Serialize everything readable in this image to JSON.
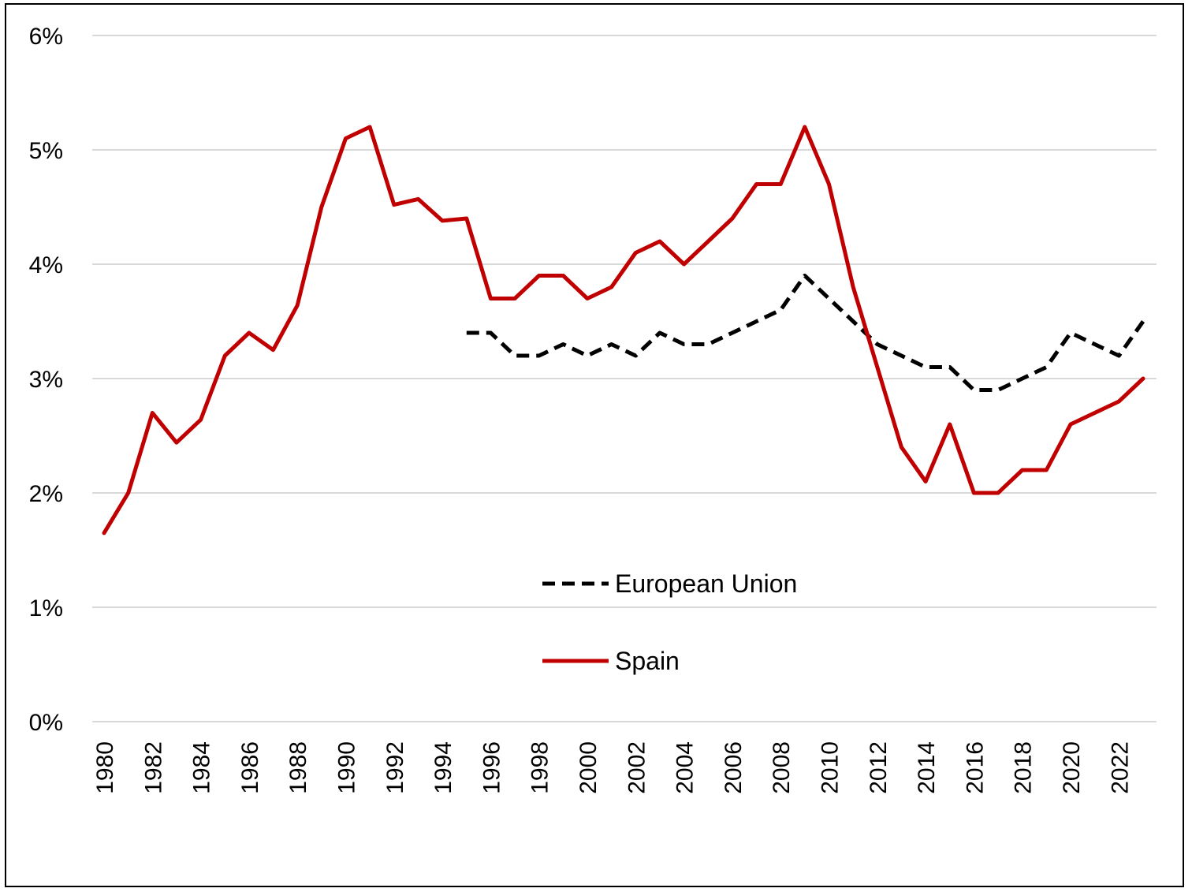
{
  "chart_data": {
    "type": "line",
    "title": "",
    "xlabel": "",
    "ylabel": "",
    "ylim": [
      0,
      0.06
    ],
    "xlim": [
      1980,
      2023
    ],
    "y_ticks": [
      "0%",
      "1%",
      "2%",
      "3%",
      "4%",
      "5%",
      "6%"
    ],
    "y_tick_values": [
      0,
      0.01,
      0.02,
      0.03,
      0.04,
      0.05,
      0.06
    ],
    "x_ticks": [
      "1980",
      "1982",
      "1984",
      "1986",
      "1988",
      "1990",
      "1992",
      "1994",
      "1996",
      "1998",
      "2000",
      "2002",
      "2004",
      "2006",
      "2008",
      "2010",
      "2012",
      "2014",
      "2016",
      "2018",
      "2020",
      "2022"
    ],
    "x_tick_values": [
      1980,
      1982,
      1984,
      1986,
      1988,
      1990,
      1992,
      1994,
      1996,
      1998,
      2000,
      2002,
      2004,
      2006,
      2008,
      2010,
      2012,
      2014,
      2016,
      2018,
      2020,
      2022
    ],
    "grid": "horizontal",
    "legend_position": "center-bottom",
    "series": [
      {
        "name": "European Union",
        "color": "#000000",
        "style": "dashed",
        "points": [
          [
            1995,
            0.034
          ],
          [
            1996,
            0.034
          ],
          [
            1997,
            0.032
          ],
          [
            1998,
            0.032
          ],
          [
            1999,
            0.033
          ],
          [
            2000,
            0.032
          ],
          [
            2001,
            0.033
          ],
          [
            2002,
            0.032
          ],
          [
            2003,
            0.034
          ],
          [
            2004,
            0.033
          ],
          [
            2005,
            0.033
          ],
          [
            2006,
            0.034
          ],
          [
            2007,
            0.035
          ],
          [
            2008,
            0.036
          ],
          [
            2009,
            0.039
          ],
          [
            2010,
            0.037
          ],
          [
            2011,
            0.035
          ],
          [
            2012,
            0.033
          ],
          [
            2013,
            0.032
          ],
          [
            2014,
            0.031
          ],
          [
            2015,
            0.031
          ],
          [
            2016,
            0.029
          ],
          [
            2017,
            0.029
          ],
          [
            2018,
            0.03
          ],
          [
            2019,
            0.031
          ],
          [
            2020,
            0.034
          ],
          [
            2021,
            0.033
          ],
          [
            2022,
            0.032
          ],
          [
            2023,
            0.035
          ]
        ]
      },
      {
        "name": "Spain",
        "color": "#c00000",
        "style": "solid",
        "points": [
          [
            1980,
            0.0165
          ],
          [
            1981,
            0.02
          ],
          [
            1982,
            0.027
          ],
          [
            1983,
            0.0244
          ],
          [
            1984,
            0.0264
          ],
          [
            1985,
            0.032
          ],
          [
            1986,
            0.034
          ],
          [
            1987,
            0.0325
          ],
          [
            1988,
            0.0364
          ],
          [
            1989,
            0.045
          ],
          [
            1990,
            0.051
          ],
          [
            1991,
            0.052
          ],
          [
            1992,
            0.0452
          ],
          [
            1993,
            0.0457
          ],
          [
            1994,
            0.0438
          ],
          [
            1995,
            0.044
          ],
          [
            1996,
            0.037
          ],
          [
            1997,
            0.037
          ],
          [
            1998,
            0.039
          ],
          [
            1999,
            0.039
          ],
          [
            2000,
            0.037
          ],
          [
            2001,
            0.038
          ],
          [
            2002,
            0.041
          ],
          [
            2003,
            0.042
          ],
          [
            2004,
            0.04
          ],
          [
            2005,
            0.042
          ],
          [
            2006,
            0.044
          ],
          [
            2007,
            0.047
          ],
          [
            2008,
            0.047
          ],
          [
            2009,
            0.052
          ],
          [
            2010,
            0.047
          ],
          [
            2011,
            0.038
          ],
          [
            2012,
            0.031
          ],
          [
            2013,
            0.024
          ],
          [
            2014,
            0.021
          ],
          [
            2015,
            0.026
          ],
          [
            2016,
            0.02
          ],
          [
            2017,
            0.02
          ],
          [
            2018,
            0.022
          ],
          [
            2019,
            0.022
          ],
          [
            2020,
            0.026
          ],
          [
            2021,
            0.027
          ],
          [
            2022,
            0.028
          ],
          [
            2023,
            0.03
          ]
        ]
      }
    ]
  }
}
